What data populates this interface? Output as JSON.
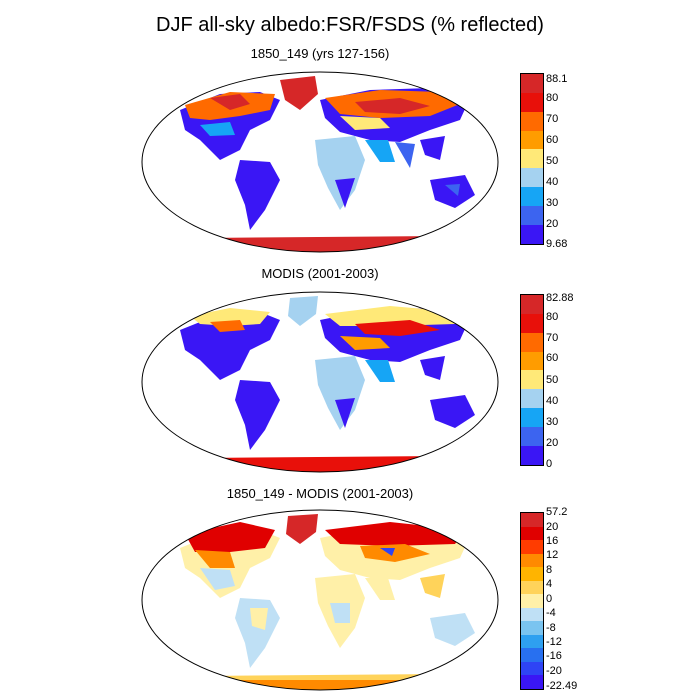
{
  "title": "DJF all-sky albedo:FSR/FSDS (% reflected)",
  "panels": [
    {
      "title": "1850_149 (yrs 127-156)",
      "colorbar": {
        "labels": [
          "88.1",
          "80",
          "70",
          "60",
          "50",
          "40",
          "30",
          "20",
          "9.68"
        ],
        "colors": [
          "#d62728",
          "#e8100a",
          "#ff6a00",
          "#ff9c00",
          "#ffe978",
          "#a5d2f0",
          "#16a5f5",
          "#3c64f0",
          "#3a16f5"
        ]
      }
    },
    {
      "title": "MODIS (2001-2003)",
      "colorbar": {
        "labels": [
          "82.88",
          "80",
          "70",
          "60",
          "50",
          "40",
          "30",
          "20",
          "0"
        ],
        "colors": [
          "#d62728",
          "#e8100a",
          "#ff6a00",
          "#ff9c00",
          "#ffe978",
          "#a5d2f0",
          "#16a5f5",
          "#3c64f0",
          "#3a16f5"
        ]
      }
    },
    {
      "title": "1850_149 - MODIS (2001-2003)",
      "colorbar": {
        "labels": [
          "57.2",
          "20",
          "16",
          "12",
          "8",
          "4",
          "0",
          "-4",
          "-8",
          "-12",
          "-16",
          "-20",
          "-22.49"
        ],
        "colors": [
          "#d62728",
          "#e00000",
          "#ff3c00",
          "#ff8a00",
          "#ffb400",
          "#ffd35a",
          "#fff0a8",
          "#bfe0f5",
          "#7ac4f0",
          "#2ea0f0",
          "#2870f0",
          "#2e44f5",
          "#3a16f5"
        ]
      }
    }
  ]
}
